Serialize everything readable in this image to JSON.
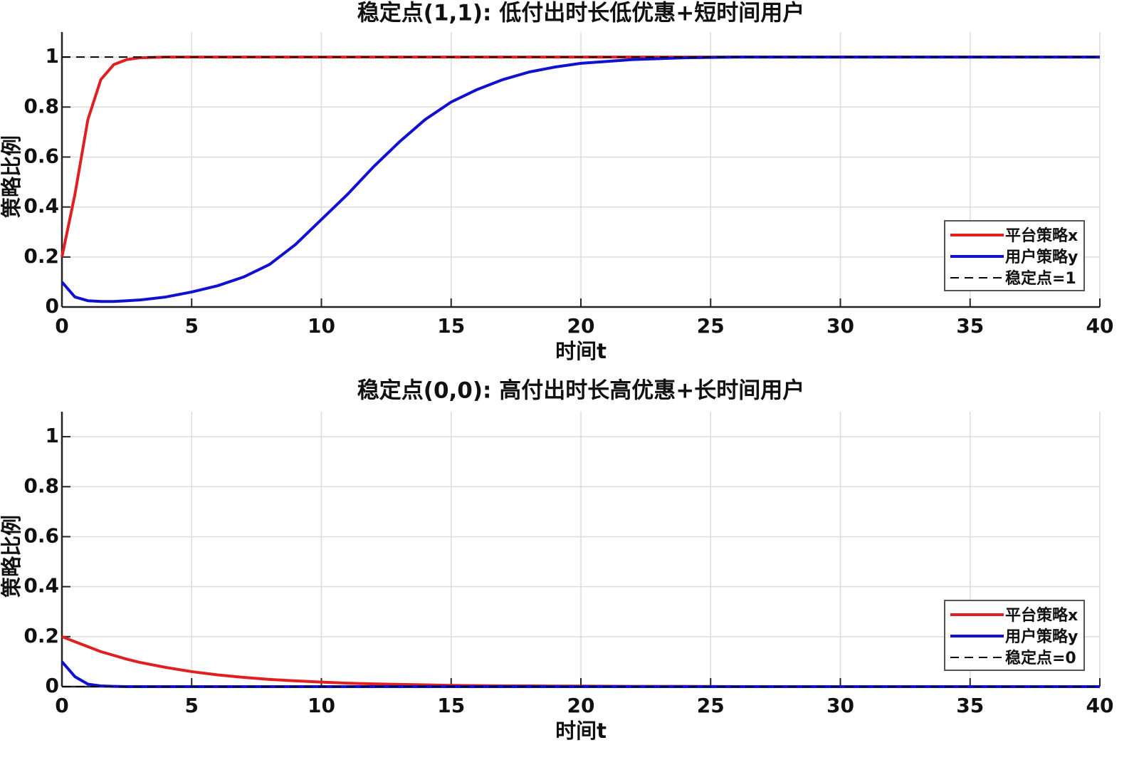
{
  "chart_data": [
    {
      "type": "line",
      "title": "稳定点(1,1): 低付出时长低优惠+短时间用户",
      "xlabel": "时间t",
      "ylabel": "策略比例",
      "x": [
        0,
        0.5,
        1,
        1.5,
        2,
        2.5,
        3,
        4,
        5,
        6,
        7,
        8,
        9,
        10,
        11,
        12,
        13,
        14,
        15,
        16,
        17,
        18,
        19,
        20,
        22,
        24,
        26,
        28,
        30,
        35,
        40
      ],
      "series": [
        {
          "name": "平台策略x",
          "color": "#e02020",
          "line_style": "solid",
          "values": [
            0.2,
            0.45,
            0.75,
            0.91,
            0.97,
            0.99,
            0.997,
            1,
            1,
            1,
            1,
            1,
            1,
            1,
            1,
            1,
            1,
            1,
            1,
            1,
            1,
            1,
            1,
            1,
            1,
            1,
            1,
            1,
            1,
            1,
            1
          ]
        },
        {
          "name": "用户策略y",
          "color": "#1010d0",
          "line_style": "solid",
          "values": [
            0.1,
            0.04,
            0.025,
            0.022,
            0.022,
            0.025,
            0.028,
            0.04,
            0.06,
            0.085,
            0.12,
            0.17,
            0.25,
            0.35,
            0.45,
            0.56,
            0.66,
            0.75,
            0.82,
            0.87,
            0.91,
            0.94,
            0.96,
            0.975,
            0.99,
            0.997,
            1,
            1,
            1,
            1,
            1
          ]
        },
        {
          "name": "稳定点=1",
          "color": "#000000",
          "line_style": "dashed",
          "values": [
            1,
            1,
            1,
            1,
            1,
            1,
            1,
            1,
            1,
            1,
            1,
            1,
            1,
            1,
            1,
            1,
            1,
            1,
            1,
            1,
            1,
            1,
            1,
            1,
            1,
            1,
            1,
            1,
            1,
            1,
            1
          ]
        }
      ],
      "xlim": [
        0,
        40
      ],
      "ylim": [
        0,
        1.1
      ],
      "xticks": [
        0,
        5,
        10,
        15,
        20,
        25,
        30,
        35,
        40
      ],
      "yticks": [
        0,
        0.2,
        0.4,
        0.6,
        0.8,
        1
      ],
      "grid": true,
      "legend": "lower right"
    },
    {
      "type": "line",
      "title": "稳定点(0,0): 高付出时长高优惠+长时间用户",
      "xlabel": "时间t",
      "ylabel": "策略比例",
      "x": [
        0,
        0.5,
        1,
        1.5,
        2,
        2.5,
        3,
        4,
        5,
        6,
        7,
        8,
        9,
        10,
        11,
        12,
        13,
        14,
        15,
        16,
        17,
        18,
        19,
        20,
        22,
        24,
        26,
        28,
        30,
        35,
        40
      ],
      "series": [
        {
          "name": "平台策略x",
          "color": "#e02020",
          "line_style": "solid",
          "values": [
            0.2,
            0.18,
            0.16,
            0.14,
            0.125,
            0.11,
            0.097,
            0.077,
            0.06,
            0.047,
            0.037,
            0.029,
            0.023,
            0.018,
            0.014,
            0.011,
            0.009,
            0.007,
            0.005,
            0.004,
            0.003,
            0.003,
            0.002,
            0.002,
            0.001,
            0.001,
            0,
            0,
            0,
            0,
            0
          ]
        },
        {
          "name": "用户策略y",
          "color": "#1010d0",
          "line_style": "solid",
          "values": [
            0.1,
            0.04,
            0.01,
            0.003,
            0.001,
            0,
            0,
            0,
            0,
            0,
            0,
            0,
            0,
            0,
            0,
            0,
            0,
            0,
            0,
            0,
            0,
            0,
            0,
            0,
            0,
            0,
            0,
            0,
            0,
            0,
            0
          ]
        },
        {
          "name": "稳定点=0",
          "color": "#000000",
          "line_style": "dashed",
          "values": [
            0,
            0,
            0,
            0,
            0,
            0,
            0,
            0,
            0,
            0,
            0,
            0,
            0,
            0,
            0,
            0,
            0,
            0,
            0,
            0,
            0,
            0,
            0,
            0,
            0,
            0,
            0,
            0,
            0,
            0,
            0
          ]
        }
      ],
      "xlim": [
        0,
        40
      ],
      "ylim": [
        0,
        1.1
      ],
      "xticks": [
        0,
        5,
        10,
        15,
        20,
        25,
        30,
        35,
        40
      ],
      "yticks": [
        0,
        0.2,
        0.4,
        0.6,
        0.8,
        1
      ],
      "grid": true,
      "legend": "lower right"
    }
  ]
}
